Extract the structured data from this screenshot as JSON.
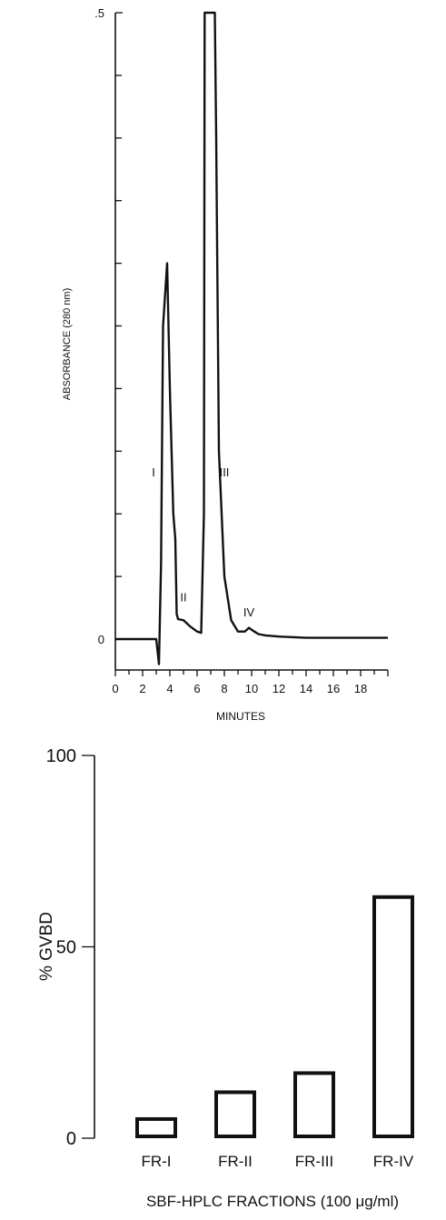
{
  "chart_data": [
    {
      "type": "line",
      "xlabel": "MINUTES",
      "ylabel": "ABSORBANCE (280 nm)",
      "xlim": [
        0,
        20
      ],
      "ylim": [
        0,
        0.5
      ],
      "x_ticks": [
        0,
        2,
        4,
        6,
        8,
        10,
        12,
        14,
        16,
        18
      ],
      "y_tick_labels": [
        {
          "value": 0,
          "label": "0"
        },
        {
          "value": 0.5,
          "label": ".5"
        }
      ],
      "y_minor_ticks": [
        0.05,
        0.1,
        0.15,
        0.2,
        0.25,
        0.3,
        0.35,
        0.4,
        0.45
      ],
      "series": [
        {
          "x": [
            0,
            3.0,
            3.2,
            3.35,
            3.5,
            3.8,
            4.0,
            4.25,
            4.4,
            4.5,
            4.6,
            5.0,
            5.5,
            6.0,
            6.3,
            6.5,
            6.55,
            6.7,
            7.3,
            7.4,
            7.6,
            8.0,
            8.5,
            9.0,
            9.5,
            9.8,
            10.2,
            10.5,
            11,
            12,
            14,
            16,
            18,
            20
          ],
          "y": [
            0,
            0,
            -0.02,
            0.06,
            0.25,
            0.3,
            0.2,
            0.1,
            0.08,
            0.02,
            0.016,
            0.015,
            0.01,
            0.006,
            0.005,
            0.1,
            0.5,
            0.5,
            0.5,
            0.4,
            0.15,
            0.05,
            0.015,
            0.006,
            0.006,
            0.009,
            0.006,
            0.004,
            0.003,
            0.002,
            0.001,
            0.001,
            0.001,
            0.001
          ]
        }
      ],
      "peak_labels": [
        {
          "label": "I",
          "x": 2.8,
          "y": 0.13
        },
        {
          "label": "II",
          "x": 5.0,
          "y": 0.03
        },
        {
          "label": "III",
          "x": 8.0,
          "y": 0.13
        },
        {
          "label": "IV",
          "x": 9.8,
          "y": 0.018
        }
      ]
    },
    {
      "type": "bar",
      "xlabel": "SBF-HPLC FRACTIONS (100 μg/ml)",
      "ylabel": "% GVBD",
      "ylim": [
        0,
        100
      ],
      "y_ticks": [
        0,
        50,
        100
      ],
      "categories": [
        "FR-I",
        "FR-II",
        "FR-III",
        "FR-IV"
      ],
      "values": [
        5,
        12,
        17,
        63
      ]
    }
  ]
}
